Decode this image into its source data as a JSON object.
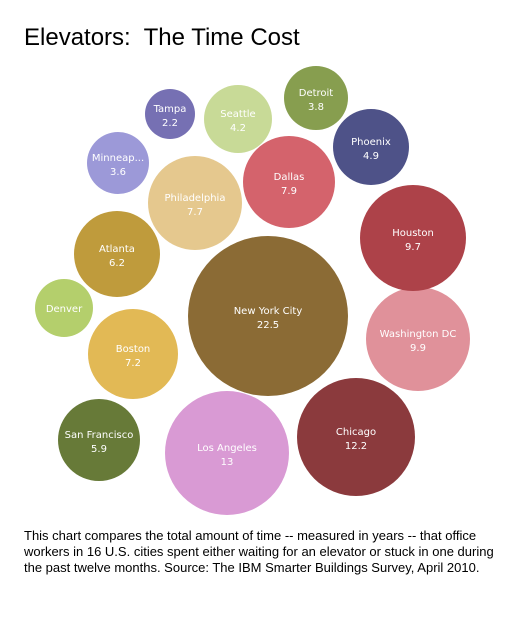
{
  "title": "Elevators:  The Time Cost",
  "caption": "This chart compares the total amount of time -- measured in years -- that office workers in 16 U.S. cities spent either waiting for an elevator or stuck in one during the past twelve months. Source: The IBM Smarter Buildings Survey, April 2010.",
  "chart_data": {
    "type": "bubble",
    "title": "Elevators:  The Time Cost",
    "unit": "years",
    "bubbles": [
      {
        "label": "New York City",
        "value": 22.5,
        "value_label": "22.5",
        "color": "#8b6b35"
      },
      {
        "label": "Los Angeles",
        "value": 13,
        "value_label": "13",
        "color": "#d99ad4"
      },
      {
        "label": "Chicago",
        "value": 12.2,
        "value_label": "12.2",
        "color": "#8b3a3d"
      },
      {
        "label": "Washington DC",
        "value": 9.9,
        "value_label": "9.9",
        "color": "#e0919a"
      },
      {
        "label": "Houston",
        "value": 9.7,
        "value_label": "9.7",
        "color": "#ad4249"
      },
      {
        "label": "Dallas",
        "value": 7.9,
        "value_label": "7.9",
        "color": "#d4636c"
      },
      {
        "label": "Philadelphia",
        "value": 7.7,
        "value_label": "7.7",
        "color": "#e5c88e"
      },
      {
        "label": "Boston",
        "value": 7.2,
        "value_label": "7.2",
        "color": "#e2b955"
      },
      {
        "label": "Atlanta",
        "value": 6.2,
        "value_label": "6.2",
        "color": "#bf9b3c"
      },
      {
        "label": "San Francisco",
        "value": 5.9,
        "value_label": "5.9",
        "color": "#677a38"
      },
      {
        "label": "Phoenix",
        "value": 4.9,
        "value_label": "4.9",
        "color": "#4e5288"
      },
      {
        "label": "Seattle",
        "value": 4.2,
        "value_label": "4.2",
        "color": "#c8da97"
      },
      {
        "label": "Detroit",
        "value": 3.8,
        "value_label": "3.8",
        "color": "#879e4f"
      },
      {
        "label": "Minneap...",
        "value": 3.6,
        "value_label": "3.6",
        "color": "#9c99d8"
      },
      {
        "label": "Denver",
        "value": null,
        "value_label": "",
        "color": "#b4cf6c"
      },
      {
        "label": "Tampa",
        "value": 2.2,
        "value_label": "2.2",
        "color": "#7670b3"
      }
    ]
  }
}
